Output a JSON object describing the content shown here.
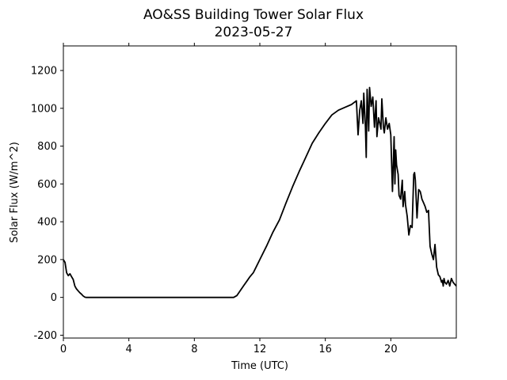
{
  "chart_data": {
    "type": "line",
    "title": "AO&SS Building Tower Solar Flux",
    "subtitle": "2023-05-27",
    "xlabel": "Time (UTC)",
    "ylabel": "Solar Flux (W/m^2)",
    "xlim": [
      0,
      24
    ],
    "ylim": [
      -215,
      1330
    ],
    "xticks": [
      0,
      4,
      8,
      12,
      16,
      20
    ],
    "yticks": [
      -200,
      0,
      200,
      400,
      600,
      800,
      1000,
      1200
    ],
    "grid": false,
    "line_color": "#000000",
    "series": [
      {
        "x": [
          0.0,
          0.1,
          0.2,
          0.3,
          0.4,
          0.5,
          0.6,
          0.7,
          0.8,
          0.9,
          1.0,
          1.1,
          1.2,
          1.3,
          1.4,
          2.0,
          4.0,
          6.0,
          8.0,
          10.0,
          10.4,
          10.6,
          10.8,
          11.0,
          11.2,
          11.4,
          11.6,
          11.8,
          12.0,
          12.4,
          12.8,
          13.2,
          13.6,
          14.0,
          14.4,
          14.8,
          15.2,
          15.6,
          16.0,
          16.4,
          16.8,
          17.2,
          17.6,
          17.9,
          18.0,
          18.1,
          18.2,
          18.3,
          18.35,
          18.45,
          18.5,
          18.55,
          18.65,
          18.7,
          18.8,
          18.9,
          19.0,
          19.1,
          19.15,
          19.25,
          19.3,
          19.4,
          19.45,
          19.55,
          19.6,
          19.7,
          19.8,
          19.9,
          20.0,
          20.1,
          20.2,
          20.25,
          20.3,
          20.35,
          20.45,
          20.5,
          20.6,
          20.7,
          20.75,
          20.85,
          20.9,
          21.0,
          21.1,
          21.2,
          21.3,
          21.4,
          21.45,
          21.5,
          21.6,
          21.7,
          21.8,
          21.85,
          21.9,
          22.0,
          22.1,
          22.2,
          22.3,
          22.4,
          22.5,
          22.6,
          22.7,
          22.8,
          22.9,
          23.0,
          23.1,
          23.15,
          23.2,
          23.25,
          23.3,
          23.4,
          23.5,
          23.6,
          23.7,
          23.8,
          23.9,
          24.0
        ],
        "y": [
          200,
          185,
          130,
          115,
          125,
          110,
          95,
          60,
          45,
          35,
          25,
          18,
          8,
          2,
          0,
          0,
          0,
          0,
          0,
          0,
          0,
          10,
          35,
          60,
          85,
          110,
          130,
          165,
          200,
          270,
          345,
          410,
          500,
          585,
          665,
          740,
          815,
          870,
          920,
          965,
          990,
          1005,
          1020,
          1040,
          860,
          990,
          1040,
          920,
          1080,
          900,
          740,
          1100,
          880,
          1110,
          1010,
          1060,
          900,
          1040,
          850,
          950,
          930,
          890,
          1050,
          900,
          870,
          950,
          890,
          920,
          860,
          560,
          850,
          600,
          780,
          700,
          650,
          540,
          520,
          620,
          480,
          560,
          490,
          430,
          330,
          380,
          370,
          650,
          660,
          620,
          420,
          570,
          560,
          540,
          520,
          500,
          480,
          450,
          460,
          270,
          230,
          200,
          280,
          160,
          120,
          110,
          80,
          90,
          60,
          100,
          80,
          70,
          90,
          60,
          100,
          80,
          70,
          60
        ]
      }
    ]
  }
}
